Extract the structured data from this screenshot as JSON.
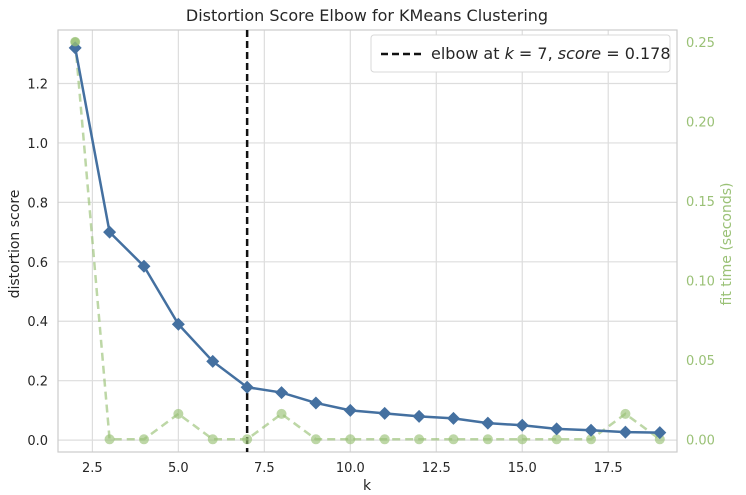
{
  "chart_data": {
    "type": "line",
    "title": "Distortion Score Elbow for KMeans Clustering",
    "xlabel": "k",
    "ylabel": "distortion score",
    "ylabel_right": "fit time (seconds)",
    "xlim": [
      1.5,
      19.5
    ],
    "ylim": [
      -0.04,
      1.38
    ],
    "ylim_right": [
      -0.008,
      0.2575
    ],
    "xticks": [
      2.5,
      5.0,
      7.5,
      10.0,
      12.5,
      15.0,
      17.5
    ],
    "xtick_labels": [
      "2.5",
      "5.0",
      "7.5",
      "10.0",
      "12.5",
      "15.0",
      "17.5"
    ],
    "yticks": [
      0.0,
      0.2,
      0.4,
      0.6,
      0.8,
      1.0,
      1.2
    ],
    "ytick_labels": [
      "0.0",
      "0.2",
      "0.4",
      "0.6",
      "0.8",
      "1.0",
      "1.2"
    ],
    "yticks_right": [
      0.0,
      0.05,
      0.1,
      0.15,
      0.2,
      0.25
    ],
    "ytick_labels_right": [
      "0.00",
      "0.05",
      "0.10",
      "0.15",
      "0.20",
      "0.25"
    ],
    "grid": true,
    "legend_placement": "top-right",
    "x": [
      2,
      3,
      4,
      5,
      6,
      7,
      8,
      9,
      10,
      11,
      12,
      13,
      14,
      15,
      16,
      17,
      18,
      19
    ],
    "series": [
      {
        "axis": "left",
        "color": "#4470a0",
        "marker": "diamond",
        "values": [
          1.32,
          0.7,
          0.585,
          0.39,
          0.265,
          0.178,
          0.16,
          0.125,
          0.1,
          0.09,
          0.08,
          0.073,
          0.057,
          0.05,
          0.038,
          0.033,
          0.027,
          0.025
        ]
      },
      {
        "axis": "right",
        "color": "#9ac176",
        "marker": "circle",
        "dashed": true,
        "values": [
          0.25,
          0.0,
          0.0,
          0.016,
          0.0,
          0.0,
          0.016,
          0.0,
          0.0,
          0.0,
          0.0,
          0.0,
          0.0,
          0.0,
          0.0,
          0.0,
          0.016,
          0.0
        ]
      }
    ],
    "elbow": {
      "k": 7,
      "legend_label_prefix": "elbow at ",
      "legend_label_k": "k",
      "legend_label_eq1": " = 7, ",
      "legend_label_score": "score",
      "legend_label_eq2": " = 0.178",
      "color": "#111111"
    }
  }
}
